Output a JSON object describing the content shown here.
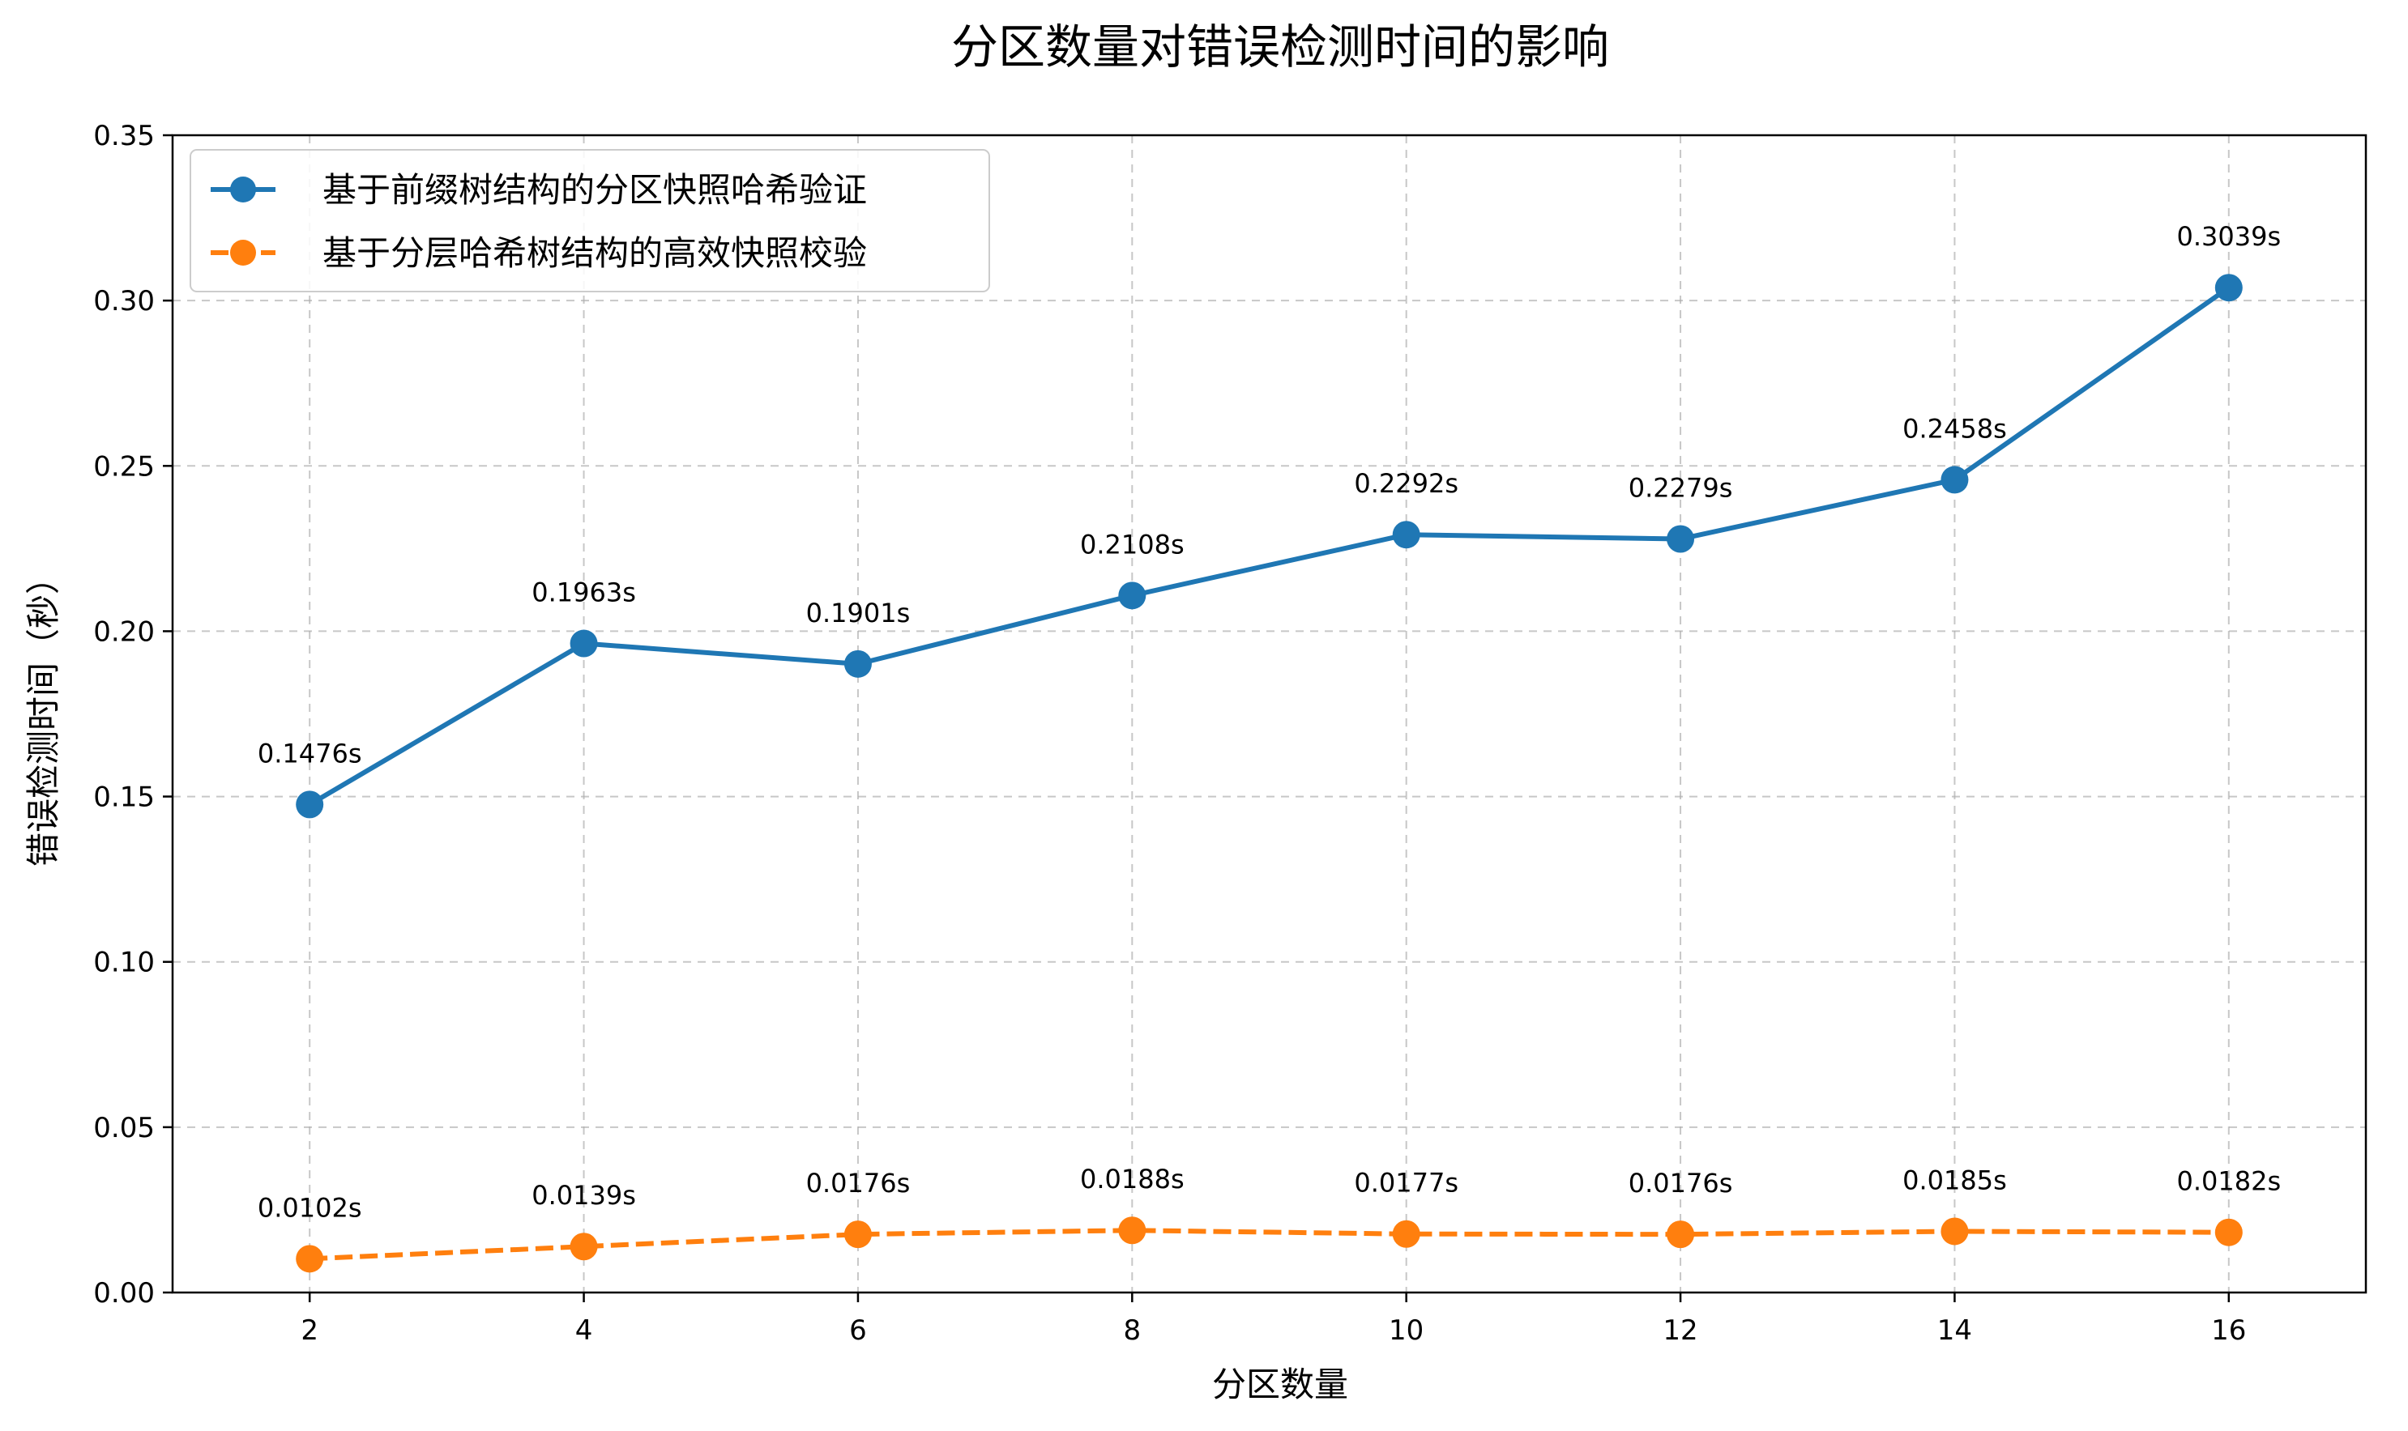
{
  "chart_data": {
    "type": "line",
    "title": "分区数量对错误检测时间的影响",
    "xlabel": "分区数量",
    "ylabel": "错误检测时间（秒）",
    "x": [
      2,
      4,
      6,
      8,
      10,
      12,
      14,
      16
    ],
    "x_ticks": [
      "2",
      "4",
      "6",
      "8",
      "10",
      "12",
      "14",
      "16"
    ],
    "xlim": [
      1,
      17
    ],
    "ylim": [
      0,
      0.35
    ],
    "y_ticks": [
      "0.00",
      "0.05",
      "0.10",
      "0.15",
      "0.20",
      "0.25",
      "0.30",
      "0.35"
    ],
    "grid": true,
    "legend_position": "top-left",
    "series": [
      {
        "name": "基于前缀树结构的分区快照哈希验证",
        "color": "#1f77b4",
        "line_style": "solid",
        "marker": "circle",
        "values": [
          0.1476,
          0.1963,
          0.1901,
          0.2108,
          0.2292,
          0.2279,
          0.2458,
          0.3039
        ],
        "labels": [
          "0.1476s",
          "0.1963s",
          "0.1901s",
          "0.2108s",
          "0.2292s",
          "0.2279s",
          "0.2458s",
          "0.3039s"
        ]
      },
      {
        "name": "基于分层哈希树结构的高效快照校验",
        "color": "#ff7f0e",
        "line_style": "dashed",
        "marker": "circle",
        "values": [
          0.0102,
          0.0139,
          0.0176,
          0.0188,
          0.0177,
          0.0176,
          0.0185,
          0.0182
        ],
        "labels": [
          "0.0102s",
          "0.0139s",
          "0.0176s",
          "0.0188s",
          "0.0177s",
          "0.0176s",
          "0.0185s",
          "0.0182s"
        ]
      }
    ]
  }
}
